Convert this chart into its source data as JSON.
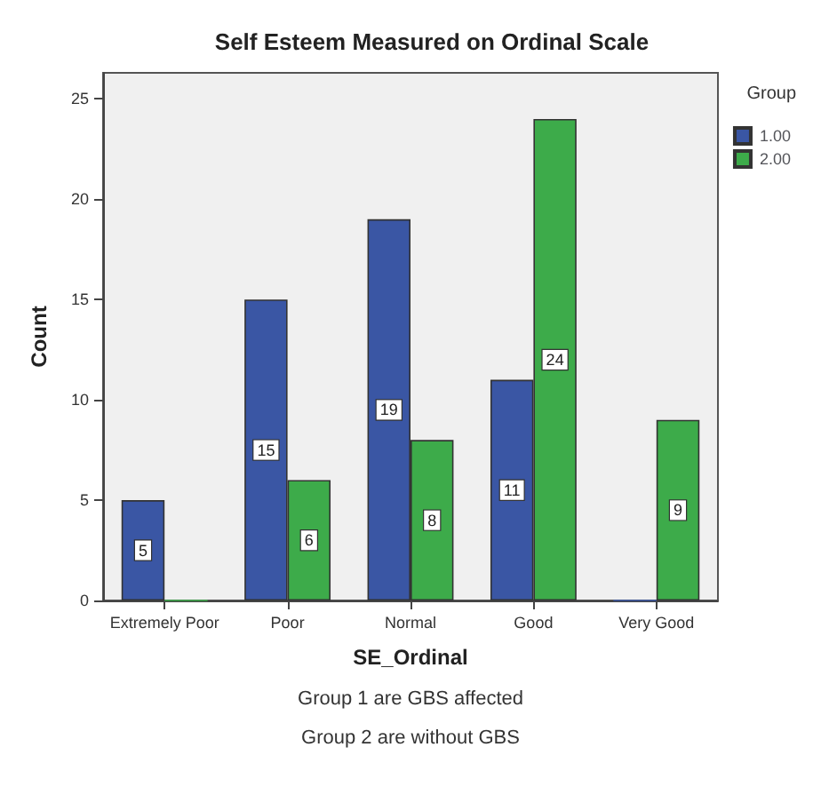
{
  "chart_data": {
    "type": "bar",
    "title": "Self Esteem Measured on Ordinal Scale",
    "xlabel": "SE_Ordinal",
    "ylabel": "Count",
    "legend_title": "Group",
    "categories": [
      "Extremely Poor",
      "Poor",
      "Normal",
      "Good",
      "Very Good"
    ],
    "series": [
      {
        "name": "1.00",
        "color": "#3a56a4",
        "values": [
          5,
          15,
          19,
          11,
          0
        ],
        "value_labels": [
          "5",
          "15",
          "19",
          "11",
          null
        ]
      },
      {
        "name": "2.00",
        "color": "#3dab4a",
        "values": [
          0,
          6,
          8,
          24,
          9
        ],
        "value_labels": [
          null,
          "6",
          "8",
          "24",
          "9"
        ]
      }
    ],
    "ylim": [
      0,
      26.3
    ],
    "yticks": [
      0,
      5,
      10,
      15,
      20,
      25
    ],
    "grid": false,
    "legend": "top right",
    "annotations": [
      "Group 1 are GBS affected",
      "Group 2 are without GBS"
    ]
  }
}
